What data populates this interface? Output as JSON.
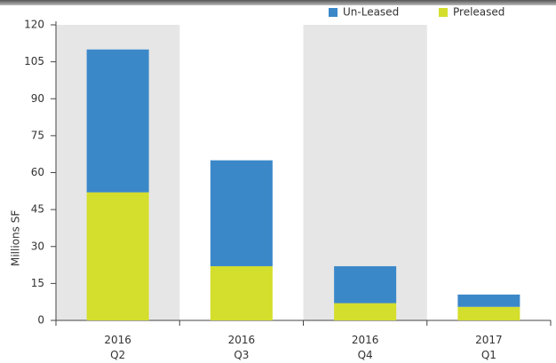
{
  "chart_data": {
    "type": "stacked_bar",
    "y_label": "Millions SF",
    "categories": [
      "2016 Q2",
      "2016 Q3",
      "2016 Q4",
      "2017 Q1"
    ],
    "series": [
      {
        "name": "Preleased",
        "color": "#d4de2c",
        "values": [
          52,
          22,
          7,
          5.5
        ]
      },
      {
        "name": "Un-Leased",
        "color": "#3b88c9",
        "values": [
          58,
          43,
          15,
          5
        ]
      }
    ],
    "ylim": [
      0,
      120
    ],
    "yticks": [
      0,
      15,
      30,
      45,
      60,
      75,
      90,
      105,
      120
    ],
    "legend": "top-right",
    "band_color": "#e6e6e6"
  }
}
